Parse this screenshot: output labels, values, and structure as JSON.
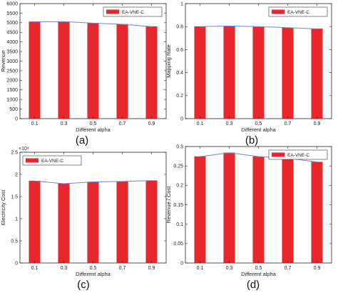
{
  "bar_color": "#e8262b",
  "line_color": "#6f86c8",
  "chart_data": [
    {
      "type": "bar",
      "caption": "(a)",
      "categories": [
        "0.1",
        "0.3",
        "0.5",
        "0.7",
        "0.9"
      ],
      "values": [
        5050,
        5060,
        4980,
        4920,
        4800
      ],
      "ylim": [
        0,
        6000
      ],
      "yticks": [
        "0",
        "500",
        "1000",
        "1500",
        "2000",
        "2500",
        "3000",
        "3500",
        "4000",
        "4500",
        "5000",
        "5500",
        "6000"
      ],
      "ytick_values": [
        0,
        500,
        1000,
        1500,
        2000,
        2500,
        3000,
        3500,
        4000,
        4500,
        5000,
        5500,
        6000
      ],
      "xlabel": "Different alpha",
      "ylabel": "Revenue",
      "legend": "EA-VNE-C",
      "legend_position": "top-right",
      "exponent_label": ""
    },
    {
      "type": "bar",
      "caption": "(b)",
      "categories": [
        "0.1",
        "0.3",
        "0.5",
        "0.7",
        "0.9"
      ],
      "values": [
        0.8,
        0.805,
        0.8,
        0.79,
        0.78
      ],
      "ylim": [
        0,
        1
      ],
      "yticks": [
        "0",
        "0.2",
        "0.4",
        "0.6",
        "0.8",
        "1"
      ],
      "ytick_values": [
        0,
        0.2,
        0.4,
        0.6,
        0.8,
        1
      ],
      "xlabel": "Different alpha",
      "ylabel": "Mapping Rate",
      "legend": "EA-VNE-C",
      "legend_position": "top-right",
      "exponent_label": ""
    },
    {
      "type": "bar",
      "caption": "(c)",
      "categories": [
        "0.1",
        "0.3",
        "0.5",
        "0.7",
        "0.9"
      ],
      "values": [
        1.85,
        1.79,
        1.83,
        1.84,
        1.86
      ],
      "ylim": [
        0,
        2.5
      ],
      "yticks": [
        "0",
        "0.5",
        "1",
        "1.5",
        "2",
        "2.5"
      ],
      "ytick_values": [
        0,
        0.5,
        1,
        1.5,
        2,
        2.5
      ],
      "xlabel": "Different alpha",
      "ylabel": "Electricity Cost",
      "legend": "EA-VNE-C",
      "legend_position": "top-left",
      "exponent_label": "×10⁴"
    },
    {
      "type": "bar",
      "caption": "(d)",
      "categories": [
        "0.1",
        "0.3",
        "0.5",
        "0.7",
        "0.9"
      ],
      "values": [
        0.274,
        0.284,
        0.274,
        0.27,
        0.26
      ],
      "ylim": [
        0,
        0.3
      ],
      "yticks": [
        "0",
        "0.05",
        "0.1",
        "0.15",
        "0.2",
        "0.25",
        "0.3"
      ],
      "ytick_values": [
        0,
        0.05,
        0.1,
        0.15,
        0.2,
        0.25,
        0.3
      ],
      "xlabel": "Different alpha",
      "ylabel": "Revenue / Cost",
      "legend": "EA-VNE-C",
      "legend_position": "top-right",
      "exponent_label": ""
    }
  ]
}
